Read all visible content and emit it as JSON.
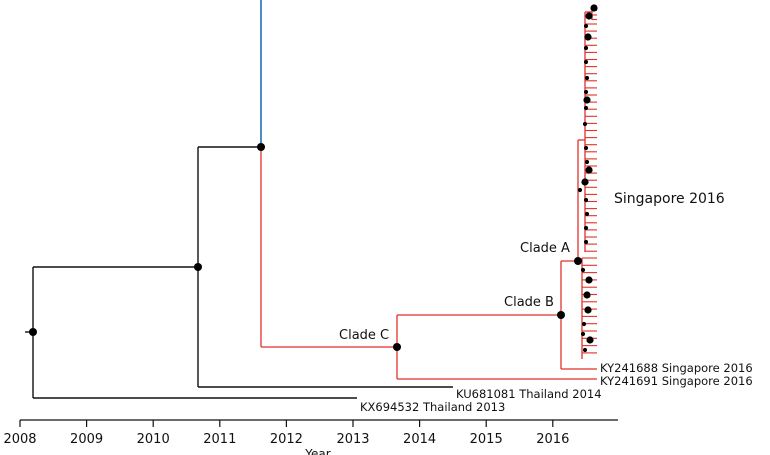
{
  "tree": {
    "leaves": {
      "ky241688": "KY241688 Singapore 2016",
      "ky241691": "KY241691 Singapore 2016",
      "ku681081": "KU681081 Thailand 2014",
      "kx694532": "KX694532 Thailand 2013"
    },
    "clades": {
      "a": "Clade A",
      "b": "Clade B",
      "c": "Clade C"
    },
    "group_label": "Singapore 2016",
    "colors": {
      "background_lineage": "#111111",
      "singapore_lineage": "#e0312a",
      "upper_branch": "#1f6fb5",
      "node": "#000000"
    }
  },
  "axis": {
    "title": "Year",
    "ticks": [
      "2008",
      "2009",
      "2010",
      "2011",
      "2012",
      "2013",
      "2014",
      "2015",
      "2016"
    ]
  }
}
